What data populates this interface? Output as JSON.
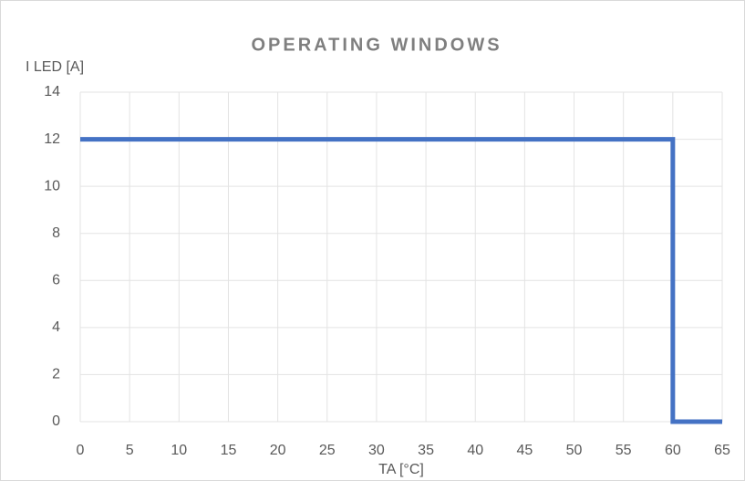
{
  "chart_data": {
    "type": "line",
    "title": "OPERATING WINDOWS",
    "y_label": "I LED [A]",
    "x_label": "TA [°C]",
    "x": [
      0,
      60,
      60,
      65
    ],
    "series": [
      {
        "name": "I LED",
        "color": "#4472c4",
        "values": [
          12,
          12,
          0,
          0
        ]
      }
    ],
    "xlim": [
      0,
      65
    ],
    "xticks": [
      0,
      5,
      10,
      15,
      20,
      25,
      30,
      35,
      40,
      45,
      50,
      55,
      60,
      65
    ],
    "ylim": [
      0,
      14
    ],
    "yticks": [
      0,
      2,
      4,
      6,
      8,
      10,
      12,
      14
    ],
    "grid": true
  }
}
